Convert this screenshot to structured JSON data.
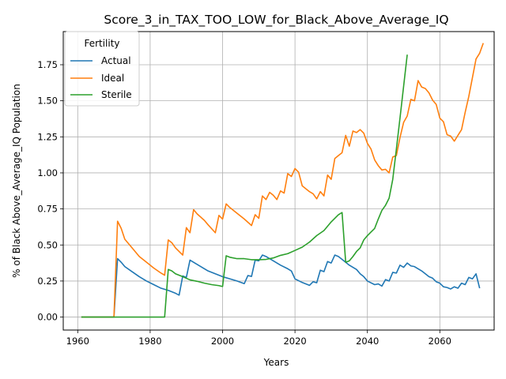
{
  "chart_data": {
    "type": "line",
    "title": "Score_3_in_TAX_TOO_LOW_for_Black_Above_Average_IQ",
    "xlabel": "Years",
    "ylabel": "% of Black Above_Average_IQ Population",
    "xlim": [
      1956,
      2075
    ],
    "ylim": [
      -0.09,
      1.98
    ],
    "xticks": [
      1960,
      1980,
      2000,
      2020,
      2040,
      2060
    ],
    "yticks": [
      0.0,
      0.25,
      0.5,
      0.75,
      1.0,
      1.25,
      1.5,
      1.75
    ],
    "ytick_labels": [
      "0.00",
      "0.25",
      "0.50",
      "0.75",
      "1.00",
      "1.25",
      "1.50",
      "1.75"
    ],
    "grid": true,
    "legend": {
      "title": "Fertility",
      "position": "top-left"
    },
    "series": [
      {
        "name": "Actual",
        "color": "#1f77b4",
        "points": [
          [
            1961,
            0.0
          ],
          [
            1965,
            0.0
          ],
          [
            1970,
            0.0
          ],
          [
            1971,
            0.405
          ],
          [
            1972,
            0.38
          ],
          [
            1973,
            0.35
          ],
          [
            1975,
            0.315
          ],
          [
            1977,
            0.28
          ],
          [
            1979,
            0.25
          ],
          [
            1981,
            0.225
          ],
          [
            1983,
            0.2
          ],
          [
            1985,
            0.185
          ],
          [
            1987,
            0.165
          ],
          [
            1988,
            0.152
          ],
          [
            1989,
            0.285
          ],
          [
            1990,
            0.275
          ],
          [
            1991,
            0.395
          ],
          [
            1992,
            0.38
          ],
          [
            1994,
            0.35
          ],
          [
            1996,
            0.32
          ],
          [
            1998,
            0.3
          ],
          [
            2000,
            0.28
          ],
          [
            2002,
            0.265
          ],
          [
            2004,
            0.25
          ],
          [
            2006,
            0.232
          ],
          [
            2007,
            0.288
          ],
          [
            2008,
            0.282
          ],
          [
            2009,
            0.395
          ],
          [
            2010,
            0.39
          ],
          [
            2011,
            0.43
          ],
          [
            2012,
            0.42
          ],
          [
            2014,
            0.39
          ],
          [
            2016,
            0.36
          ],
          [
            2018,
            0.335
          ],
          [
            2019,
            0.32
          ],
          [
            2020,
            0.265
          ],
          [
            2022,
            0.24
          ],
          [
            2024,
            0.22
          ],
          [
            2025,
            0.245
          ],
          [
            2026,
            0.238
          ],
          [
            2027,
            0.325
          ],
          [
            2028,
            0.315
          ],
          [
            2029,
            0.385
          ],
          [
            2030,
            0.375
          ],
          [
            2031,
            0.43
          ],
          [
            2032,
            0.42
          ],
          [
            2033,
            0.4
          ],
          [
            2035,
            0.36
          ],
          [
            2037,
            0.33
          ],
          [
            2038,
            0.3
          ],
          [
            2039,
            0.28
          ],
          [
            2040,
            0.25
          ],
          [
            2042,
            0.225
          ],
          [
            2043,
            0.23
          ],
          [
            2044,
            0.215
          ],
          [
            2045,
            0.26
          ],
          [
            2046,
            0.25
          ],
          [
            2047,
            0.31
          ],
          [
            2048,
            0.305
          ],
          [
            2049,
            0.36
          ],
          [
            2050,
            0.345
          ],
          [
            2051,
            0.375
          ],
          [
            2052,
            0.355
          ],
          [
            2053,
            0.35
          ],
          [
            2055,
            0.32
          ],
          [
            2057,
            0.28
          ],
          [
            2058,
            0.27
          ],
          [
            2059,
            0.245
          ],
          [
            2060,
            0.235
          ],
          [
            2061,
            0.21
          ],
          [
            2062,
            0.205
          ],
          [
            2063,
            0.195
          ],
          [
            2064,
            0.21
          ],
          [
            2065,
            0.2
          ],
          [
            2066,
            0.235
          ],
          [
            2067,
            0.225
          ],
          [
            2068,
            0.275
          ],
          [
            2069,
            0.265
          ],
          [
            2070,
            0.3
          ],
          [
            2071,
            0.2
          ]
        ]
      },
      {
        "name": "Ideal",
        "color": "#ff7f0e",
        "points": [
          [
            1961,
            0.0
          ],
          [
            1965,
            0.0
          ],
          [
            1970,
            0.0
          ],
          [
            1971,
            0.665
          ],
          [
            1972,
            0.615
          ],
          [
            1973,
            0.54
          ],
          [
            1975,
            0.48
          ],
          [
            1977,
            0.42
          ],
          [
            1979,
            0.38
          ],
          [
            1981,
            0.34
          ],
          [
            1983,
            0.305
          ],
          [
            1984,
            0.29
          ],
          [
            1985,
            0.535
          ],
          [
            1986,
            0.515
          ],
          [
            1987,
            0.48
          ],
          [
            1989,
            0.43
          ],
          [
            1990,
            0.62
          ],
          [
            1991,
            0.585
          ],
          [
            1992,
            0.745
          ],
          [
            1993,
            0.715
          ],
          [
            1995,
            0.67
          ],
          [
            1996,
            0.64
          ],
          [
            1998,
            0.585
          ],
          [
            1999,
            0.705
          ],
          [
            2000,
            0.68
          ],
          [
            2001,
            0.785
          ],
          [
            2002,
            0.76
          ],
          [
            2004,
            0.72
          ],
          [
            2006,
            0.68
          ],
          [
            2008,
            0.635
          ],
          [
            2009,
            0.71
          ],
          [
            2010,
            0.685
          ],
          [
            2011,
            0.84
          ],
          [
            2012,
            0.815
          ],
          [
            2013,
            0.865
          ],
          [
            2014,
            0.845
          ],
          [
            2015,
            0.815
          ],
          [
            2016,
            0.875
          ],
          [
            2017,
            0.86
          ],
          [
            2018,
            0.995
          ],
          [
            2019,
            0.975
          ],
          [
            2020,
            1.03
          ],
          [
            2021,
            1.005
          ],
          [
            2022,
            0.91
          ],
          [
            2024,
            0.87
          ],
          [
            2025,
            0.855
          ],
          [
            2026,
            0.82
          ],
          [
            2027,
            0.87
          ],
          [
            2028,
            0.84
          ],
          [
            2029,
            0.985
          ],
          [
            2030,
            0.955
          ],
          [
            2031,
            1.1
          ],
          [
            2032,
            1.12
          ],
          [
            2033,
            1.14
          ],
          [
            2034,
            1.26
          ],
          [
            2035,
            1.185
          ],
          [
            2036,
            1.29
          ],
          [
            2037,
            1.28
          ],
          [
            2038,
            1.3
          ],
          [
            2039,
            1.275
          ],
          [
            2040,
            1.205
          ],
          [
            2041,
            1.165
          ],
          [
            2042,
            1.09
          ],
          [
            2043,
            1.05
          ],
          [
            2044,
            1.02
          ],
          [
            2045,
            1.025
          ],
          [
            2046,
            1.0
          ],
          [
            2047,
            1.11
          ],
          [
            2048,
            1.12
          ],
          [
            2049,
            1.245
          ],
          [
            2050,
            1.35
          ],
          [
            2051,
            1.395
          ],
          [
            2052,
            1.51
          ],
          [
            2053,
            1.5
          ],
          [
            2054,
            1.64
          ],
          [
            2055,
            1.595
          ],
          [
            2056,
            1.585
          ],
          [
            2057,
            1.555
          ],
          [
            2058,
            1.505
          ],
          [
            2059,
            1.475
          ],
          [
            2060,
            1.38
          ],
          [
            2061,
            1.355
          ],
          [
            2062,
            1.265
          ],
          [
            2063,
            1.255
          ],
          [
            2064,
            1.22
          ],
          [
            2065,
            1.26
          ],
          [
            2066,
            1.3
          ],
          [
            2067,
            1.42
          ],
          [
            2068,
            1.53
          ],
          [
            2069,
            1.66
          ],
          [
            2070,
            1.79
          ],
          [
            2071,
            1.83
          ],
          [
            2072,
            1.9
          ]
        ]
      },
      {
        "name": "Sterile",
        "color": "#2ca02c",
        "points": [
          [
            1961,
            0.0
          ],
          [
            1965,
            0.0
          ],
          [
            1970,
            0.0
          ],
          [
            1975,
            0.0
          ],
          [
            1980,
            0.0
          ],
          [
            1984,
            0.0
          ],
          [
            1985,
            0.33
          ],
          [
            1986,
            0.32
          ],
          [
            1987,
            0.3
          ],
          [
            1989,
            0.28
          ],
          [
            1991,
            0.258
          ],
          [
            1993,
            0.248
          ],
          [
            1995,
            0.235
          ],
          [
            1997,
            0.225
          ],
          [
            1999,
            0.218
          ],
          [
            2000,
            0.212
          ],
          [
            2001,
            0.425
          ],
          [
            2002,
            0.415
          ],
          [
            2004,
            0.405
          ],
          [
            2006,
            0.405
          ],
          [
            2008,
            0.398
          ],
          [
            2010,
            0.398
          ],
          [
            2012,
            0.4
          ],
          [
            2014,
            0.41
          ],
          [
            2016,
            0.428
          ],
          [
            2018,
            0.44
          ],
          [
            2020,
            0.462
          ],
          [
            2022,
            0.485
          ],
          [
            2024,
            0.52
          ],
          [
            2026,
            0.565
          ],
          [
            2028,
            0.6
          ],
          [
            2030,
            0.66
          ],
          [
            2032,
            0.71
          ],
          [
            2033,
            0.725
          ],
          [
            2034,
            0.38
          ],
          [
            2035,
            0.39
          ],
          [
            2036,
            0.42
          ],
          [
            2037,
            0.455
          ],
          [
            2038,
            0.48
          ],
          [
            2039,
            0.535
          ],
          [
            2040,
            0.565
          ],
          [
            2041,
            0.59
          ],
          [
            2042,
            0.615
          ],
          [
            2043,
            0.68
          ],
          [
            2044,
            0.74
          ],
          [
            2045,
            0.775
          ],
          [
            2046,
            0.825
          ],
          [
            2047,
            0.955
          ],
          [
            2048,
            1.165
          ],
          [
            2049,
            1.38
          ],
          [
            2050,
            1.6
          ],
          [
            2051,
            1.82
          ]
        ]
      }
    ]
  }
}
